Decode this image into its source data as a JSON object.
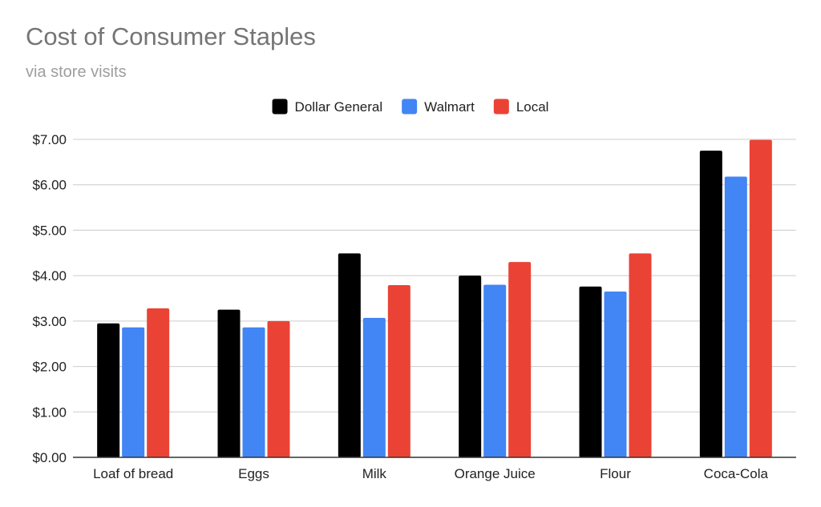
{
  "chart_data": {
    "type": "bar",
    "title": "Cost of Consumer Staples",
    "subtitle": "via store visits",
    "xlabel": "",
    "ylabel": "",
    "categories": [
      "Loaf of bread",
      "Eggs",
      "Milk",
      "Orange Juice",
      "Flour",
      "Coca-Cola"
    ],
    "series": [
      {
        "name": "Dollar General",
        "color": "#000000",
        "values": [
          2.95,
          3.25,
          4.49,
          4.0,
          3.76,
          6.75
        ]
      },
      {
        "name": "Walmart",
        "color": "#4285f4",
        "values": [
          2.86,
          2.86,
          3.07,
          3.8,
          3.65,
          6.18
        ]
      },
      {
        "name": "Local",
        "color": "#ea4335",
        "values": [
          3.28,
          3.0,
          3.79,
          4.3,
          4.49,
          6.99
        ]
      }
    ],
    "ylim": [
      0,
      7
    ],
    "yticks": [
      0,
      1,
      2,
      3,
      4,
      5,
      6,
      7
    ],
    "ytick_labels": [
      "$0.00",
      "$1.00",
      "$2.00",
      "$3.00",
      "$4.00",
      "$5.00",
      "$6.00",
      "$7.00"
    ],
    "grid": true,
    "legend_position": "top-center"
  }
}
